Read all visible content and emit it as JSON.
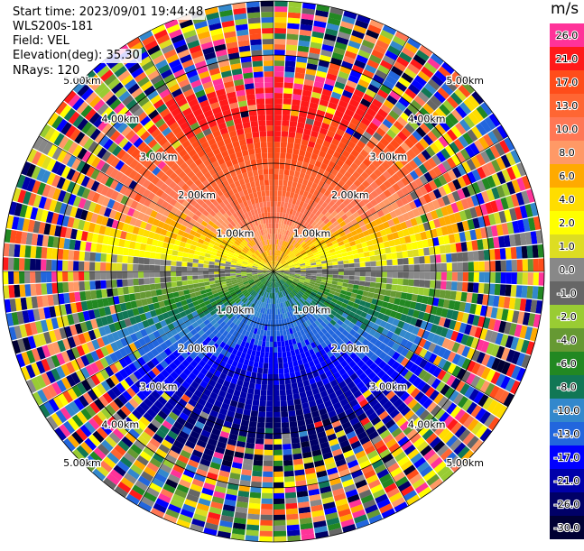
{
  "header": {
    "start_time": "Start time: 2023/09/01 19:44:48",
    "instrument": "WLS200s-181",
    "field": "Field: VEL",
    "elevation": "Elevation(deg): 35.30",
    "nrays": "NRays: 120"
  },
  "colorbar": {
    "unit": "m/s",
    "levels": [
      {
        "label": "26.0",
        "color": "#ff3399"
      },
      {
        "label": "21.0",
        "color": "#ff1a1a"
      },
      {
        "label": "17.0",
        "color": "#ff4d1a"
      },
      {
        "label": "13.0",
        "color": "#ff6633"
      },
      {
        "label": "10.0",
        "color": "#ff7755"
      },
      {
        "label": "8.0",
        "color": "#ff9966"
      },
      {
        "label": "6.0",
        "color": "#ffaa00"
      },
      {
        "label": "4.0",
        "color": "#ffdd00"
      },
      {
        "label": "2.0",
        "color": "#ffff00"
      },
      {
        "label": "1.0",
        "color": "#dddd22"
      },
      {
        "label": "0.0",
        "color": "#888888"
      },
      {
        "label": "-1.0",
        "color": "#666666"
      },
      {
        "label": "-2.0",
        "color": "#99cc33"
      },
      {
        "label": "-4.0",
        "color": "#669933"
      },
      {
        "label": "-6.0",
        "color": "#228822"
      },
      {
        "label": "-8.0",
        "color": "#117755"
      },
      {
        "label": "-10.0",
        "color": "#3388cc"
      },
      {
        "label": "-13.0",
        "color": "#2266dd"
      },
      {
        "label": "-17.0",
        "color": "#0000ff"
      },
      {
        "label": "-21.0",
        "color": "#0000aa"
      },
      {
        "label": "-26.0",
        "color": "#000066"
      },
      {
        "label": "-30.0",
        "color": "#000033"
      }
    ]
  },
  "chart_data": {
    "type": "heatmap",
    "projection": "polar PPI",
    "field": "VEL",
    "n_rays": 120,
    "max_range_km": 5.0,
    "ring_labels": [
      "1.00km",
      "2.00km",
      "3.00km",
      "4.00km",
      "5.00km"
    ],
    "ring_ranges_km": [
      1,
      2,
      3,
      4,
      5
    ],
    "vmin": -30.0,
    "vmax": 26.0,
    "pattern": "positive velocities (red/orange) in upper half, negative (blue) in lower half, noise beyond ~3.5 km"
  }
}
